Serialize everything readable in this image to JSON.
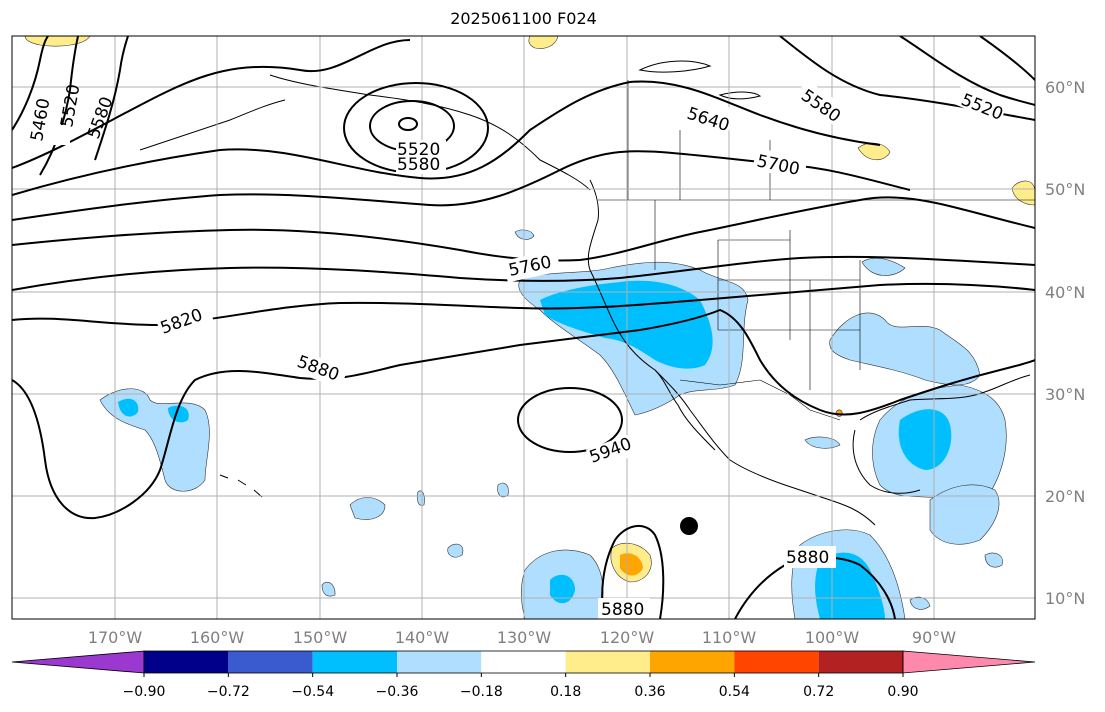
{
  "title": "2025061100 F024",
  "map": {
    "lat_labels": [
      "60°N",
      "50°N",
      "40°N",
      "30°N",
      "20°N",
      "10°N"
    ],
    "lon_labels": [
      "170°W",
      "160°W",
      "150°W",
      "140°W",
      "130°W",
      "120°W",
      "110°W",
      "100°W",
      "90°W"
    ],
    "contour_labels": [
      "5460",
      "5520",
      "5580",
      "5520",
      "5580",
      "5640",
      "5580",
      "5520",
      "5700",
      "5760",
      "5820",
      "5880",
      "5940",
      "5880",
      "5880"
    ],
    "storm_marker": "black-dot",
    "colors": {
      "contour": "#000000",
      "grid": "#b0b0b0",
      "coast": "#000000"
    }
  },
  "colorbar": {
    "colors": [
      "#9b38d0",
      "#00008b",
      "#3a5ad0",
      "#00bfff",
      "#afdeff",
      "#ffffff",
      "#ffec8b",
      "#ffa500",
      "#ff4500",
      "#b22222",
      "#ff88ad"
    ],
    "tick_labels": [
      "−0.90",
      "−0.72",
      "−0.54",
      "−0.36",
      "−0.18",
      "0.18",
      "0.36",
      "0.54",
      "0.72",
      "0.90"
    ]
  }
}
